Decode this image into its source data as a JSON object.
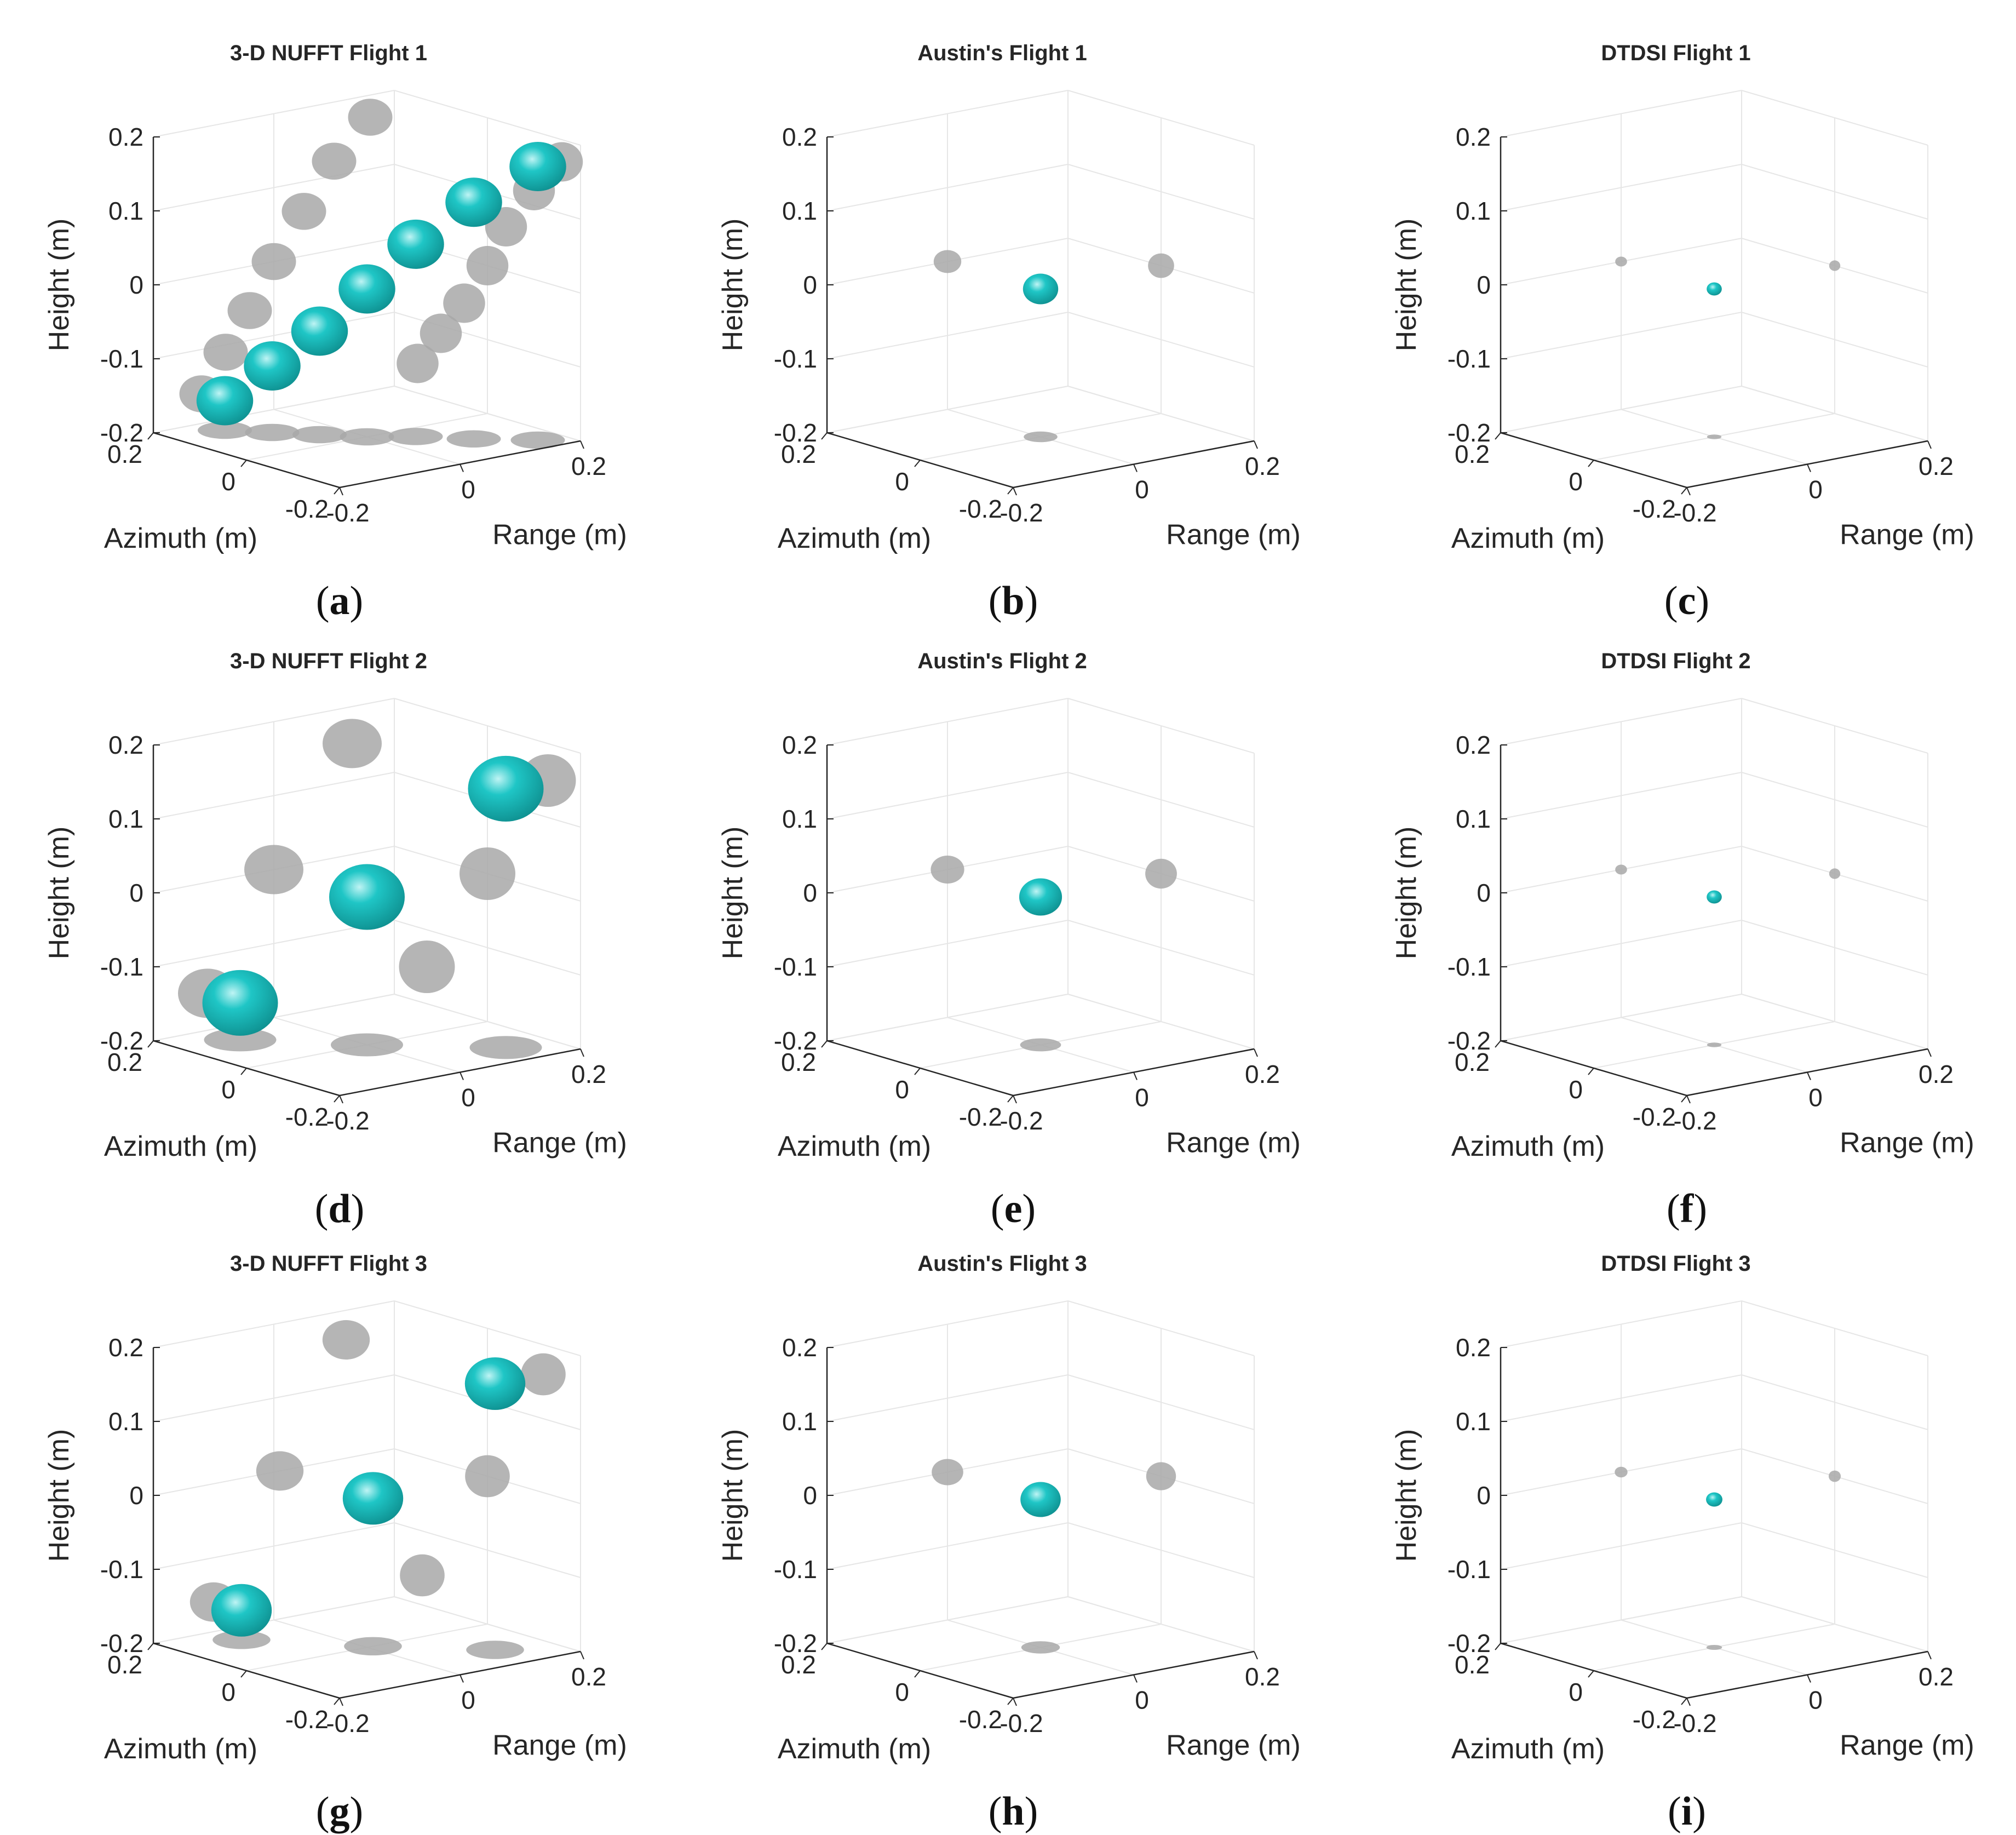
{
  "figure": {
    "colors": {
      "isosurface": "#1fc6c6",
      "isosurface_dark": "#0e8f8f",
      "shadow": "#a8a8a8",
      "axis": "#262626",
      "grid": "#e6e6e6"
    },
    "panels": [
      {
        "id": "a",
        "caption": "a",
        "chart_data": {
          "type": "3d-isosurface",
          "title": "3-D NUFFT  Flight 1",
          "method": "3-D NUFFT",
          "flight": 1,
          "xlabel": "Range (m)",
          "ylabel": "Azimuth (m)",
          "zlabel": "Height (m)",
          "xlim": [
            -0.2,
            0.2
          ],
          "ylim": [
            -0.2,
            0.2
          ],
          "zlim": [
            -0.2,
            0.2
          ],
          "xticks": [
            "-0.2",
            "0",
            "0.2"
          ],
          "yticks": [
            "-0.2",
            "0",
            "0.2"
          ],
          "zticks": [
            "-0.2",
            "-0.1",
            "0",
            "0.1",
            "0.2"
          ],
          "grid": true,
          "target": {
            "shape": "elongated-diagonal",
            "points": [
              [
                0.16,
                -0.16,
                0.17
              ],
              [
                0.1,
                -0.1,
                0.12
              ],
              [
                0.05,
                -0.04,
                0.06
              ],
              [
                0.0,
                0.0,
                0.0
              ],
              [
                -0.04,
                0.05,
                -0.06
              ],
              [
                -0.08,
                0.1,
                -0.11
              ],
              [
                -0.12,
                0.15,
                -0.16
              ]
            ],
            "radius": 0.045
          }
        }
      },
      {
        "id": "b",
        "caption": "b",
        "chart_data": {
          "type": "3d-isosurface",
          "title": "Austin's  Flight 1",
          "method": "Austin's",
          "flight": 1,
          "xlabel": "Range (m)",
          "ylabel": "Azimuth (m)",
          "zlabel": "Height (m)",
          "xlim": [
            -0.2,
            0.2
          ],
          "ylim": [
            -0.2,
            0.2
          ],
          "zlim": [
            -0.2,
            0.2
          ],
          "xticks": [
            "-0.2",
            "0",
            "0.2"
          ],
          "yticks": [
            "-0.2",
            "0",
            "0.2"
          ],
          "zticks": [
            "-0.2",
            "-0.1",
            "0",
            "0.1",
            "0.2"
          ],
          "grid": true,
          "target": {
            "shape": "compact",
            "points": [
              [
                0.0,
                0.0,
                0.0
              ]
            ],
            "radius": 0.028
          }
        }
      },
      {
        "id": "c",
        "caption": "c",
        "chart_data": {
          "type": "3d-isosurface",
          "title": "DTDSI  Flight 1",
          "method": "DTDSI",
          "flight": 1,
          "xlabel": "Range (m)",
          "ylabel": "Azimuth (m)",
          "zlabel": "Height (m)",
          "xlim": [
            -0.2,
            0.2
          ],
          "ylim": [
            -0.2,
            0.2
          ],
          "zlim": [
            -0.2,
            0.2
          ],
          "xticks": [
            "-0.2",
            "0",
            "0.2"
          ],
          "yticks": [
            "-0.2",
            "0",
            "0.2"
          ],
          "zticks": [
            "-0.2",
            "-0.1",
            "0",
            "0.1",
            "0.2"
          ],
          "grid": true,
          "target": {
            "shape": "point",
            "points": [
              [
                0.0,
                0.0,
                0.0
              ]
            ],
            "radius": 0.012
          }
        }
      },
      {
        "id": "d",
        "caption": "d",
        "chart_data": {
          "type": "3d-isosurface",
          "title": "3-D NUFFT  Flight 2",
          "method": "3-D NUFFT",
          "flight": 2,
          "xlabel": "Range (m)",
          "ylabel": "Azimuth (m)",
          "zlabel": "Height (m)",
          "xlim": [
            -0.2,
            0.2
          ],
          "ylim": [
            -0.2,
            0.2
          ],
          "zlim": [
            -0.2,
            0.2
          ],
          "xticks": [
            "-0.2",
            "0",
            "0.2"
          ],
          "yticks": [
            "-0.2",
            "0",
            "0.2"
          ],
          "zticks": [
            "-0.2",
            "-0.1",
            "0",
            "0.1",
            "0.2"
          ],
          "grid": true,
          "target": {
            "shape": "three-blobs-diagonal",
            "points": [
              [
                0.13,
                -0.13,
                0.15
              ],
              [
                0.0,
                0.0,
                0.0
              ],
              [
                -0.11,
                0.13,
                -0.15
              ]
            ],
            "radius": 0.06
          }
        }
      },
      {
        "id": "e",
        "caption": "e",
        "chart_data": {
          "type": "3d-isosurface",
          "title": "Austin's  Flight 2",
          "method": "Austin's",
          "flight": 2,
          "xlabel": "Range (m)",
          "ylabel": "Azimuth (m)",
          "zlabel": "Height (m)",
          "xlim": [
            -0.2,
            0.2
          ],
          "ylim": [
            -0.2,
            0.2
          ],
          "zlim": [
            -0.2,
            0.2
          ],
          "xticks": [
            "-0.2",
            "0",
            "0.2"
          ],
          "yticks": [
            "-0.2",
            "0",
            "0.2"
          ],
          "zticks": [
            "-0.2",
            "-0.1",
            "0",
            "0.1",
            "0.2"
          ],
          "grid": true,
          "target": {
            "shape": "compact",
            "points": [
              [
                0.0,
                0.0,
                0.0
              ]
            ],
            "radius": 0.034
          }
        }
      },
      {
        "id": "f",
        "caption": "f",
        "chart_data": {
          "type": "3d-isosurface",
          "title": "DTDSI  Flight 2",
          "method": "DTDSI",
          "flight": 2,
          "xlabel": "Range (m)",
          "ylabel": "Azimuth (m)",
          "zlabel": "Height (m)",
          "xlim": [
            -0.2,
            0.2
          ],
          "ylim": [
            -0.2,
            0.2
          ],
          "zlim": [
            -0.2,
            0.2
          ],
          "xticks": [
            "-0.2",
            "0",
            "0.2"
          ],
          "yticks": [
            "-0.2",
            "0",
            "0.2"
          ],
          "zticks": [
            "-0.2",
            "-0.1",
            "0",
            "0.1",
            "0.2"
          ],
          "grid": true,
          "target": {
            "shape": "point",
            "points": [
              [
                0.0,
                0.0,
                0.0
              ]
            ],
            "radius": 0.012
          }
        }
      },
      {
        "id": "g",
        "caption": "g",
        "chart_data": {
          "type": "3d-isosurface",
          "title": "3-D NUFFT  Flight 3",
          "method": "3-D NUFFT",
          "flight": 3,
          "xlabel": "Range (m)",
          "ylabel": "Azimuth (m)",
          "zlabel": "Height (m)",
          "xlim": [
            -0.2,
            0.2
          ],
          "ylim": [
            -0.2,
            0.2
          ],
          "zlim": [
            -0.2,
            0.2
          ],
          "xticks": [
            "-0.2",
            "0",
            "0.2"
          ],
          "yticks": [
            "-0.2",
            "0",
            "0.2"
          ],
          "zticks": [
            "-0.2",
            "-0.1",
            "0",
            "0.1",
            "0.2"
          ],
          "grid": true,
          "target": {
            "shape": "separated-blobs",
            "points": [
              [
                0.12,
                -0.12,
                0.16
              ],
              [
                0.01,
                0.0,
                0.0
              ],
              [
                -0.1,
                0.14,
                -0.16
              ]
            ],
            "radius": 0.048
          }
        }
      },
      {
        "id": "h",
        "caption": "h",
        "chart_data": {
          "type": "3d-isosurface",
          "title": "Austin's  Flight 3",
          "method": "Austin's",
          "flight": 3,
          "xlabel": "Range (m)",
          "ylabel": "Azimuth (m)",
          "zlabel": "Height (m)",
          "xlim": [
            -0.2,
            0.2
          ],
          "ylim": [
            -0.2,
            0.2
          ],
          "zlim": [
            -0.2,
            0.2
          ],
          "xticks": [
            "-0.2",
            "0",
            "0.2"
          ],
          "yticks": [
            "-0.2",
            "0",
            "0.2"
          ],
          "zticks": [
            "-0.2",
            "-0.1",
            "0",
            "0.1",
            "0.2"
          ],
          "grid": true,
          "target": {
            "shape": "compact",
            "points": [
              [
                0.0,
                0.0,
                0.0
              ]
            ],
            "radius": 0.032
          }
        }
      },
      {
        "id": "i",
        "caption": "i",
        "chart_data": {
          "type": "3d-isosurface",
          "title": "DTDSI  Flight 3",
          "method": "DTDSI",
          "flight": 3,
          "xlabel": "Range (m)",
          "ylabel": "Azimuth (m)",
          "zlabel": "Height (m)",
          "xlim": [
            -0.2,
            0.2
          ],
          "ylim": [
            -0.2,
            0.2
          ],
          "zlim": [
            -0.2,
            0.2
          ],
          "xticks": [
            "-0.2",
            "0",
            "0.2"
          ],
          "yticks": [
            "-0.2",
            "0",
            "0.2"
          ],
          "zticks": [
            "-0.2",
            "-0.1",
            "0",
            "0.1",
            "0.2"
          ],
          "grid": true,
          "target": {
            "shape": "point",
            "points": [
              [
                0.0,
                0.0,
                0.0
              ]
            ],
            "radius": 0.013
          }
        }
      }
    ]
  }
}
